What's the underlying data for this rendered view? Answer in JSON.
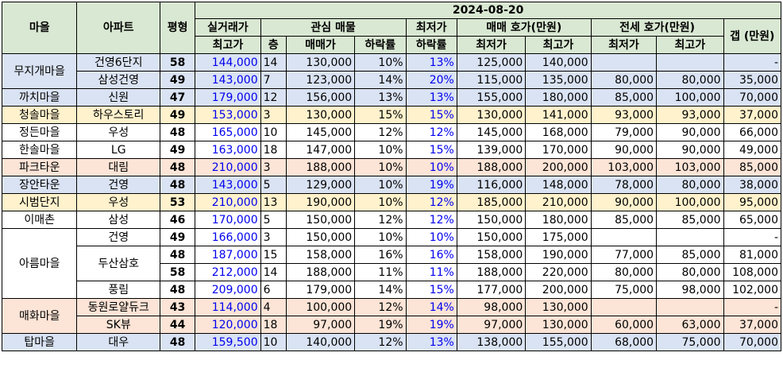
{
  "header": {
    "maeul": "마을",
    "apartment": "아파트",
    "pyeong": "평형",
    "date": "2024-08-20",
    "actual_trade": "실거래가",
    "max_price": "최고가",
    "interest": "관심 매물",
    "floor": "층",
    "sale_price": "매매가",
    "drop_rate": "하락률",
    "min_price_top": "최저가",
    "min_drop_rate": "하락률",
    "sale_quote": "매매 호가(만원)",
    "sale_min": "최저가",
    "sale_max": "최고가",
    "jeonse_quote": "전세 호가(만원)",
    "jeonse_min": "최저가",
    "jeonse_max": "최고가",
    "gap": "갭 (만원)"
  },
  "rows": [
    {
      "village": "무지개마을",
      "rowspan": 2,
      "bg": "blue",
      "apt": "건영6단지",
      "apt_rowspan": 1,
      "py": "58",
      "max": "144,000",
      "floor": "14",
      "price": "130,000",
      "drop": "10%",
      "mindrop": "13%",
      "smin": "125,000",
      "smax": "140,000",
      "jmin": "",
      "jmax": "",
      "gap": "-"
    },
    {
      "village": null,
      "bg": "blue",
      "apt": "삼성건영",
      "apt_rowspan": 1,
      "py": "49",
      "max": "143,000",
      "floor": "7",
      "price": "123,000",
      "drop": "14%",
      "mindrop": "20%",
      "smin": "115,000",
      "smax": "135,000",
      "jmin": "80,000",
      "jmax": "80,000",
      "gap": "35,000"
    },
    {
      "village": "까치마을",
      "rowspan": 1,
      "bg": "blue",
      "apt": "신원",
      "apt_rowspan": 1,
      "py": "47",
      "max": "179,000",
      "floor": "12",
      "price": "156,000",
      "drop": "13%",
      "mindrop": "13%",
      "smin": "155,000",
      "smax": "180,000",
      "jmin": "85,000",
      "jmax": "100,000",
      "gap": "70,000"
    },
    {
      "village": "청솔마을",
      "rowspan": 1,
      "bg": "yellow",
      "apt": "하우스토리",
      "apt_rowspan": 1,
      "py": "49",
      "max": "153,000",
      "floor": "3",
      "price": "130,000",
      "drop": "15%",
      "mindrop": "15%",
      "smin": "130,000",
      "smax": "141,000",
      "jmin": "93,000",
      "jmax": "93,000",
      "gap": "37,000"
    },
    {
      "village": "정든마을",
      "rowspan": 1,
      "bg": "white",
      "apt": "우성",
      "apt_rowspan": 1,
      "py": "48",
      "max": "165,000",
      "floor": "10",
      "price": "145,000",
      "drop": "12%",
      "mindrop": "12%",
      "smin": "145,000",
      "smax": "168,000",
      "jmin": "79,000",
      "jmax": "90,000",
      "gap": "66,000"
    },
    {
      "village": "한솔마을",
      "rowspan": 1,
      "bg": "white",
      "apt": "LG",
      "apt_rowspan": 1,
      "py": "49",
      "max": "163,000",
      "floor": "18",
      "price": "147,000",
      "drop": "10%",
      "mindrop": "15%",
      "smin": "139,000",
      "smax": "170,000",
      "jmin": "90,000",
      "jmax": "90,000",
      "gap": "49,000"
    },
    {
      "village": "파크타운",
      "rowspan": 1,
      "bg": "pink",
      "apt": "대림",
      "apt_rowspan": 1,
      "py": "48",
      "max": "210,000",
      "floor": "3",
      "price": "188,000",
      "drop": "10%",
      "mindrop": "10%",
      "smin": "188,000",
      "smax": "200,000",
      "jmin": "103,000",
      "jmax": "103,000",
      "gap": "85,000"
    },
    {
      "village": "장안타운",
      "rowspan": 1,
      "bg": "blue",
      "apt": "건영",
      "apt_rowspan": 1,
      "py": "48",
      "max": "143,000",
      "floor": "5",
      "price": "129,000",
      "drop": "10%",
      "mindrop": "19%",
      "smin": "116,000",
      "smax": "148,000",
      "jmin": "78,000",
      "jmax": "80,000",
      "gap": "38,000"
    },
    {
      "village": "시범단지",
      "rowspan": 1,
      "bg": "yellow",
      "apt": "우성",
      "apt_rowspan": 1,
      "py": "53",
      "max": "210,000",
      "floor": "13",
      "price": "190,000",
      "drop": "10%",
      "mindrop": "12%",
      "smin": "185,000",
      "smax": "210,000",
      "jmin": "90,000",
      "jmax": "100,000",
      "gap": "95,000"
    },
    {
      "village": "이매촌",
      "rowspan": 1,
      "bg": "white",
      "apt": "삼성",
      "apt_rowspan": 1,
      "py": "46",
      "max": "170,000",
      "floor": "5",
      "price": "150,000",
      "drop": "12%",
      "mindrop": "12%",
      "smin": "150,000",
      "smax": "180,000",
      "jmin": "85,000",
      "jmax": "85,000",
      "gap": "65,000"
    },
    {
      "village": "아름마을",
      "rowspan": 4,
      "bg": "white",
      "apt": "건영",
      "apt_rowspan": 1,
      "py": "49",
      "max": "166,000",
      "floor": "3",
      "price": "150,000",
      "drop": "10%",
      "mindrop": "10%",
      "smin": "150,000",
      "smax": "175,000",
      "jmin": "",
      "jmax": "",
      "gap": "-"
    },
    {
      "village": null,
      "bg": "white",
      "apt": "두산삼호",
      "apt_rowspan": 2,
      "py": "48",
      "max": "187,000",
      "floor": "15",
      "price": "158,000",
      "drop": "16%",
      "mindrop": "16%",
      "smin": "158,000",
      "smax": "190,000",
      "jmin": "77,000",
      "jmax": "85,000",
      "gap": "81,000"
    },
    {
      "village": null,
      "bg": "white",
      "apt": null,
      "py": "58",
      "max": "212,000",
      "floor": "14",
      "price": "188,000",
      "drop": "11%",
      "mindrop": "11%",
      "smin": "188,000",
      "smax": "220,000",
      "jmin": "80,000",
      "jmax": "80,000",
      "gap": "108,000"
    },
    {
      "village": null,
      "bg": "white",
      "apt": "풍림",
      "apt_rowspan": 1,
      "py": "48",
      "max": "209,000",
      "floor": "6",
      "price": "179,000",
      "drop": "14%",
      "mindrop": "15%",
      "smin": "177,000",
      "smax": "200,000",
      "jmin": "75,000",
      "jmax": "98,000",
      "gap": "102,000"
    },
    {
      "village": "매화마을",
      "rowspan": 2,
      "bg": "pink",
      "apt": "동원로얄듀크",
      "apt_rowspan": 1,
      "py": "43",
      "max": "114,000",
      "floor": "4",
      "price": "100,000",
      "drop": "12%",
      "mindrop": "14%",
      "smin": "98,000",
      "smax": "130,000",
      "jmin": "",
      "jmax": "",
      "gap": "-"
    },
    {
      "village": null,
      "bg": "pink",
      "apt": "SK뷰",
      "apt_rowspan": 1,
      "py": "44",
      "max": "120,000",
      "floor": "18",
      "price": "97,000",
      "drop": "19%",
      "mindrop": "19%",
      "smin": "97,000",
      "smax": "130,000",
      "jmin": "60,000",
      "jmax": "63,000",
      "gap": "37,000"
    },
    {
      "village": "탑마을",
      "rowspan": 1,
      "bg": "blue",
      "apt": "대우",
      "apt_rowspan": 1,
      "py": "48",
      "max": "159,500",
      "floor": "10",
      "price": "140,000",
      "drop": "12%",
      "mindrop": "13%",
      "smin": "138,000",
      "smax": "155,000",
      "jmin": "68,000",
      "jmax": "75,000",
      "gap": "70,000"
    }
  ]
}
